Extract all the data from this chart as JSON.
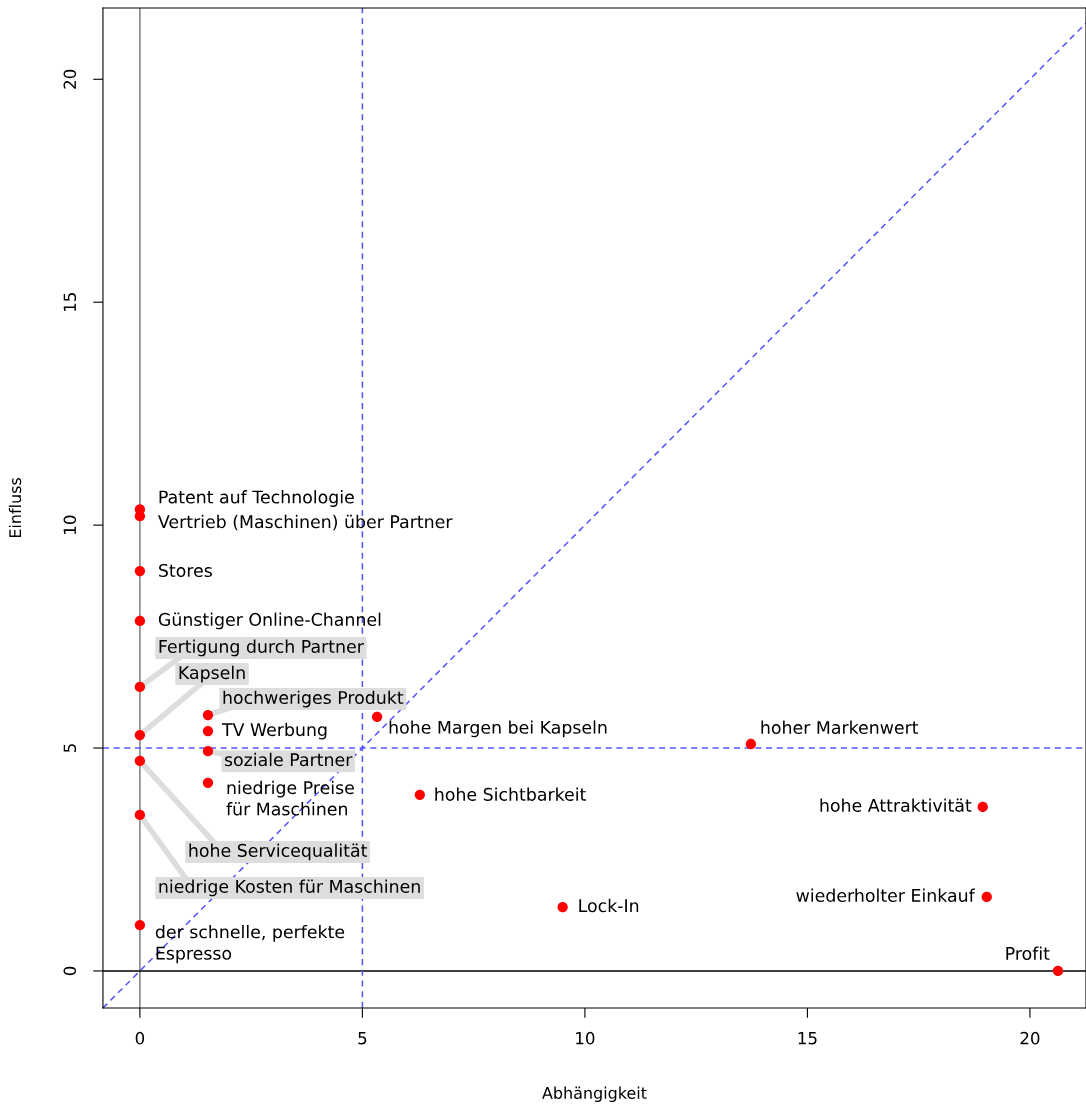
{
  "chart_data": {
    "type": "scatter",
    "xlabel": "Abhängigkeit",
    "ylabel": "Einfluss",
    "xlim": [
      -0.83,
      21.26
    ],
    "ylim": [
      -0.83,
      21.6
    ],
    "xticks": [
      0,
      5,
      10,
      15,
      20
    ],
    "yticks": [
      0,
      5,
      10,
      15,
      20
    ],
    "grid": false,
    "legend": false,
    "marker": "circle",
    "series": [
      {
        "color": "#ff0000",
        "x": [
          0,
          0,
          0,
          0,
          0,
          0,
          1.53,
          1.53,
          1.53,
          1.53,
          5.33,
          6.29,
          0,
          0,
          0,
          9.5,
          13.73,
          18.94,
          19.03,
          20.63
        ],
        "values": [
          10.35,
          10.2,
          8.97,
          7.85,
          6.37,
          5.29,
          5.74,
          5.38,
          4.93,
          4.22,
          5.7,
          3.95,
          4.71,
          3.5,
          1.03,
          1.43,
          5.09,
          3.68,
          1.66,
          0
        ]
      },
      {
        "type": "line",
        "color": "#5555ff",
        "line_style": "dashed",
        "marker": "none",
        "x": [
          -0.83,
          21.26
        ],
        "values": [
          -0.83,
          21.26
        ]
      }
    ],
    "ref_lines": [
      {
        "axis": "x",
        "value": 0,
        "color": "#808080",
        "line_style": "solid"
      },
      {
        "axis": "y",
        "value": 0,
        "color": "#000000",
        "line_style": "solid"
      },
      {
        "axis": "x",
        "value": 5,
        "color": "#5555ff",
        "line_style": "dashed"
      },
      {
        "axis": "y",
        "value": 5,
        "color": "#5555ff",
        "line_style": "dashed"
      }
    ],
    "annotations": [
      {
        "text": "Patent auf Technologie",
        "x": 0,
        "y": 10.35
      },
      {
        "text": "Vertrieb (Maschinen) über Partner",
        "x": 0,
        "y": 10.2
      },
      {
        "text": "Stores",
        "x": 0,
        "y": 8.97
      },
      {
        "text": "Günstiger Online-Channel",
        "x": 0,
        "y": 7.85
      },
      {
        "text": "Fertigung durch Partner",
        "x": 0,
        "y": 6.37
      },
      {
        "text": "Kapseln",
        "x": 0,
        "y": 5.29
      },
      {
        "text": "hochweriges Produkt",
        "x": 1.53,
        "y": 5.74
      },
      {
        "text": "TV Werbung",
        "x": 1.53,
        "y": 5.38
      },
      {
        "text": "soziale Partner",
        "x": 1.53,
        "y": 4.93
      },
      {
        "text": "niedrige Preise\nfür Maschinen",
        "x": 1.53,
        "y": 4.22
      },
      {
        "text": "hohe Margen bei Kapseln",
        "x": 5.33,
        "y": 5.7
      },
      {
        "text": "hohe Sichtbarkeit",
        "x": 6.29,
        "y": 3.95
      },
      {
        "text": "hohe Servicequalität",
        "x": 0,
        "y": 4.71
      },
      {
        "text": "niedrige Kosten für Maschinen",
        "x": 0,
        "y": 3.5
      },
      {
        "text": "der schnelle, perfekte\nEspresso",
        "x": 0,
        "y": 1.03
      },
      {
        "text": "Lock-In",
        "x": 9.5,
        "y": 1.43
      },
      {
        "text": "hoher Markenwert",
        "x": 13.73,
        "y": 5.09
      },
      {
        "text": "hohe Attraktivität",
        "x": 18.94,
        "y": 3.68
      },
      {
        "text": "wiederholter Einkauf",
        "x": 19.03,
        "y": 1.66
      },
      {
        "text": "Profit",
        "x": 20.63,
        "y": 0
      }
    ]
  }
}
